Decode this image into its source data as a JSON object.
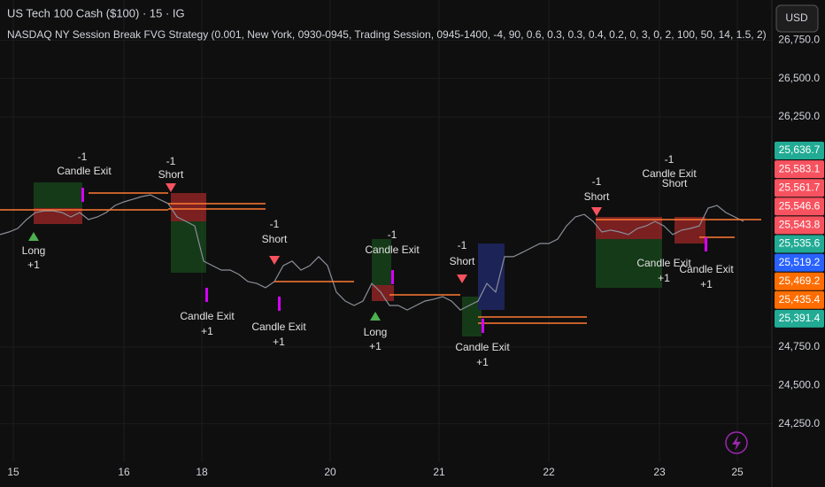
{
  "header": {
    "symbol": "US Tech 100 Cash ($100) · 15 · IG",
    "strategy": "NASDAQ NY Session Break FVG Strategy (0.001, New York, 0930-0945, Trading Session, 0945-1400, -4, 90, 0.6, 0.3, 0.3, 0.4, 0.2, 0, 3, 0, 2, 100, 50, 14, 1.5, 2)",
    "currency": "USD"
  },
  "chart_data": {
    "type": "line",
    "series": [
      {
        "name": "US Tech 100 Cash",
        "color": "#8a8f99",
        "values": [
          25483,
          25500,
          25523,
          25581,
          25627,
          25638,
          25638,
          25627,
          25598,
          25627,
          25581,
          25598,
          25627,
          25673,
          25696,
          25713,
          25731,
          25742,
          25713,
          25685,
          25598,
          25569,
          25540,
          25310,
          25281,
          25252,
          25252,
          25223,
          25177,
          25165,
          25137,
          25177,
          25281,
          25310,
          25252,
          25281,
          25339,
          25281,
          25108,
          25050,
          25021,
          25050,
          25165,
          25108,
          25021,
          25021,
          24992,
          25021,
          25050,
          25062,
          25079,
          25050,
          24992,
          25021,
          25050,
          25165,
          25108,
          25339,
          25339,
          25367,
          25396,
          25425,
          25425,
          25454,
          25540,
          25598,
          25615,
          25569,
          25500,
          25512,
          25500,
          25483,
          25523,
          25540,
          25569,
          25540,
          25483,
          25512,
          25523,
          25540,
          25656,
          25673,
          25627,
          25598,
          25569
        ]
      }
    ],
    "xlim": [
      0,
      84
    ],
    "xticks": [
      {
        "value": 1.5,
        "label": "15"
      },
      {
        "value": 14,
        "label": "16"
      },
      {
        "value": 22.8,
        "label": "18"
      },
      {
        "value": 37.3,
        "label": "20"
      },
      {
        "value": 49.6,
        "label": "21"
      },
      {
        "value": 62,
        "label": "22"
      },
      {
        "value": 74.5,
        "label": "23"
      },
      {
        "value": 83.3,
        "label": "25"
      }
    ],
    "ylim": [
      24000,
      27000
    ],
    "yticks": [
      {
        "value": 26750,
        "label": "26,750.0"
      },
      {
        "value": 26500,
        "label": "26,500.0"
      },
      {
        "value": 26250,
        "label": "26,250.0"
      },
      {
        "value": 24750,
        "label": "24,750.0"
      },
      {
        "value": 24500,
        "label": "24,500.0"
      },
      {
        "value": 24250,
        "label": "24,250.0"
      }
    ],
    "grid": true
  },
  "price_tags": [
    {
      "label": "25,636.7",
      "color": "#22ab94"
    },
    {
      "label": "25,583.1",
      "color": "#f7525f"
    },
    {
      "label": "25,561.7",
      "color": "#f7525f"
    },
    {
      "label": "25,546.6",
      "color": "#f7525f"
    },
    {
      "label": "25,543.8",
      "color": "#f7525f"
    },
    {
      "label": "25,535.6",
      "color": "#22ab94"
    },
    {
      "label": "25,519.2",
      "color": "#2962ff"
    },
    {
      "label": "25,469.2",
      "color": "#ff6d00"
    },
    {
      "label": "25,435.4",
      "color": "#ff6d00"
    },
    {
      "label": "25,391.4",
      "color": "#22ab94"
    }
  ],
  "annotations": [
    "-1",
    "Candle Exit",
    "Long",
    "+1",
    "-1",
    "Short",
    "Candle Exit",
    "+1",
    "-1",
    "Short",
    "Candle Exit",
    "+1",
    "-1",
    "Candle Exit",
    "Long",
    "+1",
    "-1",
    "Short",
    "Candle Exit",
    "+1",
    "-1",
    "Short",
    "-1",
    "Candle Exit",
    "Short",
    "Candle Exit",
    "+1",
    "Candle Exit",
    "+1"
  ]
}
